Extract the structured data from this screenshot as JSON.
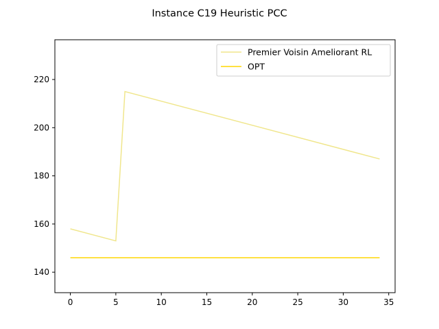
{
  "chart_data": {
    "type": "line",
    "title": "Instance C19 Heuristic PCC",
    "xlabel": "",
    "ylabel": "",
    "xlim": [
      -1.7,
      35.7
    ],
    "ylim": [
      131.5,
      236.5
    ],
    "xticks": [
      0,
      5,
      10,
      15,
      20,
      25,
      30,
      35
    ],
    "yticks": [
      140,
      160,
      180,
      200,
      220
    ],
    "grid": false,
    "legend_position": "top-right",
    "series": [
      {
        "name": "Premier Voisin Ameliorant RL",
        "color": "#f0e68c",
        "x": [
          0,
          5,
          6,
          34
        ],
        "y": [
          158,
          153,
          215,
          187
        ]
      },
      {
        "name": "OPT",
        "color": "#ffd700",
        "x": [
          0,
          34
        ],
        "y": [
          146,
          146
        ]
      }
    ]
  }
}
